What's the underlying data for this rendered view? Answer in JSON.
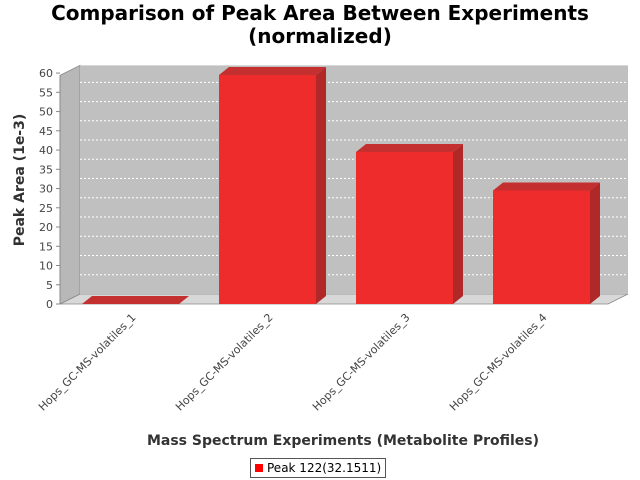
{
  "chart_data": {
    "type": "bar",
    "title": [
      "Comparison of Peak Area Between Experiments",
      "(normalized)"
    ],
    "xlabel": "Mass Spectrum Experiments (Metabolite Profiles)",
    "ylabel": "Peak Area (1e-3)",
    "categories": [
      "Hops_GC-MS-volatiles_1",
      "Hops_GC-MS-volatiles_2",
      "Hops_GC-MS-volatiles_3",
      "Hops_GC-MS-volatiles_4"
    ],
    "series": [
      {
        "name": "Peak 122(32.1511)",
        "values": [
          0,
          59.5,
          39.5,
          29.5
        ]
      }
    ],
    "ylim": [
      0,
      62
    ],
    "yticks": [
      0,
      5,
      10,
      15,
      20,
      25,
      30,
      35,
      40,
      45,
      50,
      55,
      60
    ],
    "grid": true,
    "legend_position": "bottom",
    "colors": {
      "bar_front": "#ee2c2c",
      "bar_side": "#b02828",
      "bar_top": "#c43030",
      "plot_background": "#c0c0c0",
      "floor": "#d8d8d8",
      "wall": "#b8b8b8",
      "legend_swatch": "#ff0000"
    }
  }
}
